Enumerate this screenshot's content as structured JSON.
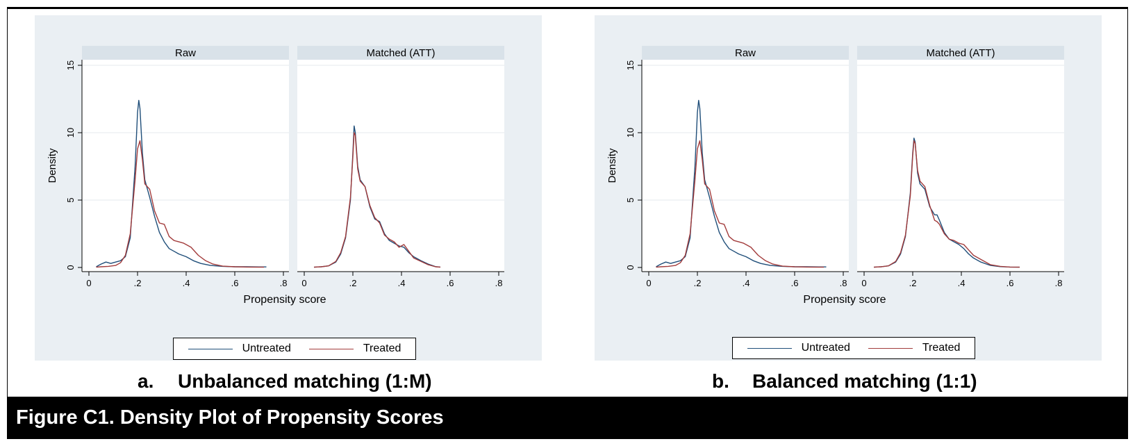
{
  "figure_title": "Figure C1. Density Plot of Propensity Scores",
  "colors": {
    "untreated": "#1f4e79",
    "treated": "#a23b3b",
    "panel_bg": "#eaeff3",
    "strip_bg": "#d9e2e9"
  },
  "panels": [
    {
      "caption_letter": "a.",
      "caption_text": "Unbalanced matching (1:M)",
      "xlabel": "Propensity score",
      "ylabel": "Density",
      "legend": {
        "untreated": "Untreated",
        "treated": "Treated"
      }
    },
    {
      "caption_letter": "b.",
      "caption_text": "Balanced matching (1:1)",
      "xlabel": "Propensity score",
      "ylabel": "Density",
      "legend": {
        "untreated": "Untreated",
        "treated": "Treated"
      }
    }
  ],
  "chart_data": [
    {
      "type": "line",
      "title": "Raw",
      "xlabel": "Propensity score",
      "ylabel": "Density",
      "xlim": [
        0,
        0.8
      ],
      "ylim": [
        0,
        15
      ],
      "xticks": [
        "0",
        ".2",
        ".4",
        ".6",
        ".8"
      ],
      "yticks": [
        "0",
        "5",
        "10",
        "15"
      ],
      "series": [
        {
          "name": "Untreated",
          "color": "#1f4e79",
          "x": [
            0.03,
            0.05,
            0.07,
            0.09,
            0.11,
            0.13,
            0.15,
            0.17,
            0.19,
            0.2,
            0.205,
            0.21,
            0.22,
            0.23,
            0.25,
            0.27,
            0.29,
            0.31,
            0.33,
            0.35,
            0.37,
            0.4,
            0.43,
            0.46,
            0.5,
            0.55,
            0.6,
            0.65,
            0.7,
            0.73
          ],
          "y": [
            0.05,
            0.25,
            0.4,
            0.3,
            0.4,
            0.5,
            0.8,
            2.2,
            7.5,
            11.5,
            12.4,
            11.8,
            8.5,
            6.5,
            5.2,
            3.8,
            2.6,
            1.9,
            1.4,
            1.2,
            1.0,
            0.8,
            0.5,
            0.3,
            0.15,
            0.08,
            0.05,
            0.05,
            0.04,
            0.04
          ]
        },
        {
          "name": "Treated",
          "color": "#a23b3b",
          "x": [
            0.03,
            0.05,
            0.08,
            0.11,
            0.13,
            0.15,
            0.17,
            0.19,
            0.2,
            0.21,
            0.22,
            0.23,
            0.25,
            0.27,
            0.29,
            0.31,
            0.33,
            0.35,
            0.37,
            0.39,
            0.42,
            0.45,
            0.48,
            0.51,
            0.55,
            0.6,
            0.65,
            0.7,
            0.72
          ],
          "y": [
            0.02,
            0.05,
            0.08,
            0.15,
            0.35,
            0.9,
            2.5,
            6.5,
            8.8,
            9.4,
            8.0,
            6.2,
            5.8,
            4.2,
            3.3,
            3.2,
            2.3,
            2.0,
            1.9,
            1.8,
            1.5,
            0.9,
            0.5,
            0.25,
            0.1,
            0.05,
            0.03,
            0.02,
            0.02
          ]
        }
      ]
    },
    {
      "type": "line",
      "title": "Matched (ATT)",
      "xlabel": "Propensity score",
      "ylabel": "Density",
      "xlim": [
        0,
        0.8
      ],
      "ylim": [
        0,
        15
      ],
      "xticks": [
        "0",
        ".2",
        ".4",
        ".6",
        ".8"
      ],
      "yticks": [
        "0",
        "5",
        "10",
        "15"
      ],
      "series": [
        {
          "name": "Untreated",
          "color": "#1f4e79",
          "x": [
            0.04,
            0.07,
            0.1,
            0.13,
            0.15,
            0.17,
            0.19,
            0.2,
            0.205,
            0.21,
            0.22,
            0.23,
            0.25,
            0.27,
            0.29,
            0.31,
            0.33,
            0.35,
            0.37,
            0.39,
            0.41,
            0.43,
            0.45,
            0.48,
            0.51,
            0.54,
            0.56
          ],
          "y": [
            0.02,
            0.05,
            0.12,
            0.4,
            1.0,
            2.2,
            5.0,
            8.5,
            10.5,
            10.0,
            7.5,
            6.5,
            6.0,
            4.5,
            3.6,
            3.4,
            2.5,
            2.0,
            1.8,
            1.6,
            1.5,
            1.1,
            0.8,
            0.5,
            0.25,
            0.06,
            0.03
          ]
        },
        {
          "name": "Treated",
          "color": "#a23b3b",
          "x": [
            0.04,
            0.07,
            0.1,
            0.13,
            0.15,
            0.17,
            0.19,
            0.2,
            0.205,
            0.21,
            0.22,
            0.23,
            0.25,
            0.27,
            0.29,
            0.31,
            0.33,
            0.35,
            0.37,
            0.39,
            0.41,
            0.43,
            0.45,
            0.48,
            0.51,
            0.54,
            0.56
          ],
          "y": [
            0.02,
            0.05,
            0.12,
            0.45,
            1.1,
            2.3,
            5.2,
            8.2,
            10.0,
            9.8,
            7.3,
            6.4,
            6.0,
            4.6,
            3.7,
            3.3,
            2.4,
            2.1,
            1.9,
            1.5,
            1.7,
            1.2,
            0.7,
            0.45,
            0.2,
            0.05,
            0.02
          ]
        }
      ]
    },
    {
      "type": "line",
      "title": "Raw",
      "xlabel": "Propensity score",
      "ylabel": "Density",
      "xlim": [
        0,
        0.8
      ],
      "ylim": [
        0,
        15
      ],
      "xticks": [
        "0",
        ".2",
        ".4",
        ".6",
        ".8"
      ],
      "yticks": [
        "0",
        "5",
        "10",
        "15"
      ],
      "series": [
        {
          "name": "Untreated",
          "color": "#1f4e79",
          "x": [
            0.03,
            0.05,
            0.07,
            0.09,
            0.11,
            0.13,
            0.15,
            0.17,
            0.19,
            0.2,
            0.205,
            0.21,
            0.22,
            0.23,
            0.25,
            0.27,
            0.29,
            0.31,
            0.33,
            0.35,
            0.37,
            0.4,
            0.43,
            0.46,
            0.5,
            0.55,
            0.6,
            0.65,
            0.7,
            0.73
          ],
          "y": [
            0.05,
            0.25,
            0.4,
            0.3,
            0.4,
            0.5,
            0.8,
            2.2,
            7.5,
            11.5,
            12.4,
            11.8,
            8.5,
            6.5,
            5.2,
            3.8,
            2.6,
            1.9,
            1.4,
            1.2,
            1.0,
            0.8,
            0.5,
            0.3,
            0.15,
            0.08,
            0.05,
            0.05,
            0.04,
            0.04
          ]
        },
        {
          "name": "Treated",
          "color": "#a23b3b",
          "x": [
            0.03,
            0.05,
            0.08,
            0.11,
            0.13,
            0.15,
            0.17,
            0.19,
            0.2,
            0.21,
            0.22,
            0.23,
            0.25,
            0.27,
            0.29,
            0.31,
            0.33,
            0.35,
            0.37,
            0.39,
            0.42,
            0.45,
            0.48,
            0.51,
            0.55,
            0.6,
            0.65,
            0.7,
            0.72
          ],
          "y": [
            0.02,
            0.05,
            0.08,
            0.15,
            0.35,
            0.9,
            2.5,
            6.5,
            8.8,
            9.4,
            8.0,
            6.2,
            5.8,
            4.2,
            3.3,
            3.2,
            2.3,
            2.0,
            1.9,
            1.8,
            1.5,
            0.9,
            0.5,
            0.25,
            0.1,
            0.05,
            0.03,
            0.02,
            0.02
          ]
        }
      ]
    },
    {
      "type": "line",
      "title": "Matched (ATT)",
      "xlabel": "Propensity score",
      "ylabel": "Density",
      "xlim": [
        0,
        0.8
      ],
      "ylim": [
        0,
        15
      ],
      "xticks": [
        "0",
        ".2",
        ".4",
        ".6",
        ".8"
      ],
      "yticks": [
        "0",
        "5",
        "10",
        "15"
      ],
      "series": [
        {
          "name": "Untreated",
          "color": "#1f4e79",
          "x": [
            0.04,
            0.07,
            0.1,
            0.13,
            0.15,
            0.17,
            0.19,
            0.2,
            0.205,
            0.21,
            0.22,
            0.23,
            0.25,
            0.27,
            0.29,
            0.3,
            0.31,
            0.33,
            0.35,
            0.37,
            0.39,
            0.41,
            0.43,
            0.45,
            0.48,
            0.52,
            0.56,
            0.6,
            0.64
          ],
          "y": [
            0.02,
            0.05,
            0.12,
            0.4,
            1.0,
            2.3,
            5.5,
            8.5,
            9.6,
            9.3,
            7.0,
            6.2,
            5.8,
            4.5,
            3.9,
            3.9,
            3.5,
            2.6,
            2.1,
            1.9,
            1.7,
            1.4,
            1.0,
            0.7,
            0.4,
            0.15,
            0.06,
            0.03,
            0.02
          ]
        },
        {
          "name": "Treated",
          "color": "#a23b3b",
          "x": [
            0.04,
            0.07,
            0.1,
            0.13,
            0.15,
            0.17,
            0.19,
            0.2,
            0.205,
            0.21,
            0.22,
            0.23,
            0.25,
            0.27,
            0.29,
            0.3,
            0.31,
            0.33,
            0.35,
            0.37,
            0.39,
            0.41,
            0.43,
            0.45,
            0.48,
            0.52,
            0.56,
            0.6,
            0.64
          ],
          "y": [
            0.02,
            0.05,
            0.12,
            0.45,
            1.1,
            2.4,
            5.3,
            8.3,
            9.4,
            9.2,
            7.2,
            6.4,
            6.0,
            4.6,
            3.5,
            3.4,
            3.2,
            2.5,
            2.1,
            2.0,
            1.8,
            1.7,
            1.3,
            0.9,
            0.6,
            0.2,
            0.08,
            0.03,
            0.02
          ]
        }
      ]
    }
  ]
}
